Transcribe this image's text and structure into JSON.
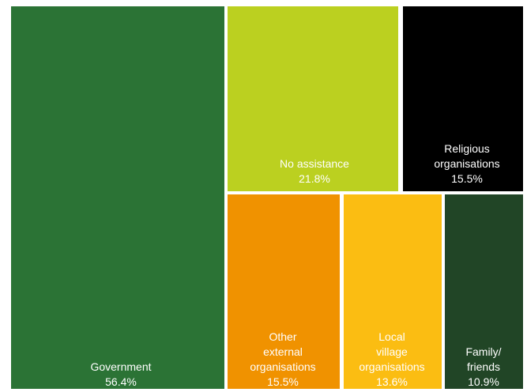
{
  "chart_data": {
    "type": "treemap",
    "title": "",
    "categories": [
      "Government",
      "No assistance",
      "Religious organisations",
      "Other external organisations",
      "Local village organisations",
      "Family/ friends"
    ],
    "values": [
      56.4,
      21.8,
      15.5,
      15.5,
      13.6,
      10.9
    ],
    "unit": "%",
    "cells": [
      {
        "key": "government",
        "label_lines": [
          "Government"
        ],
        "value_label": "56.4%",
        "value": 56.4,
        "color": "#2b7335",
        "text_color": "#ffffff"
      },
      {
        "key": "no-assistance",
        "label_lines": [
          "No assistance"
        ],
        "value_label": "21.8%",
        "value": 21.8,
        "color": "#bbd020",
        "text_color": "#1a1a1a"
      },
      {
        "key": "religious",
        "label_lines": [
          "Religious",
          "organisations"
        ],
        "value_label": "15.5%",
        "value": 15.5,
        "color": "#000000",
        "text_color": "#ffffff"
      },
      {
        "key": "other-external",
        "label_lines": [
          "Other",
          "external",
          "organisations"
        ],
        "value_label": "15.5%",
        "value": 15.5,
        "color": "#f09200",
        "text_color": "#1a1a1a"
      },
      {
        "key": "local-village",
        "label_lines": [
          "Local",
          "village",
          "organisations"
        ],
        "value_label": "13.6%",
        "value": 13.6,
        "color": "#fbbd12",
        "text_color": "#1a1a1a"
      },
      {
        "key": "family-friends",
        "label_lines": [
          "Family/",
          "friends"
        ],
        "value_label": "10.9%",
        "value": 10.9,
        "color": "#214526",
        "text_color": "#ffffff"
      }
    ]
  }
}
